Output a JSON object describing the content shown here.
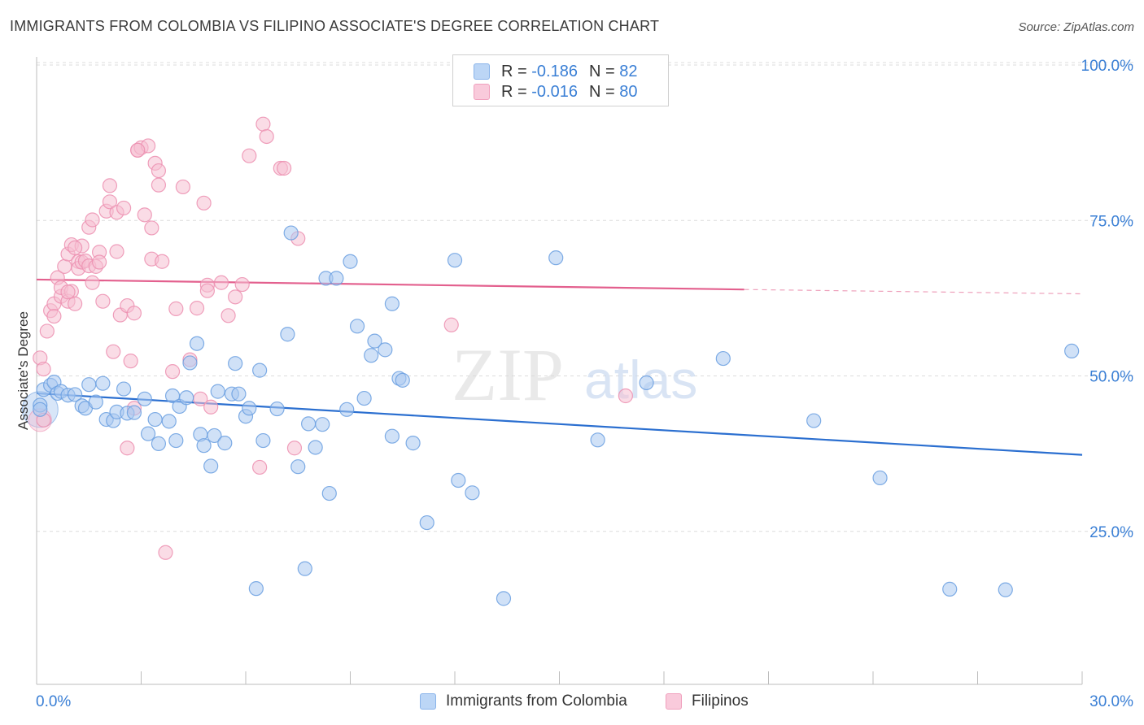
{
  "title": "IMMIGRANTS FROM COLOMBIA VS FILIPINO ASSOCIATE'S DEGREE CORRELATION CHART",
  "source": "Source: ZipAtlas.com",
  "watermark": {
    "zip": "ZIP",
    "atlas": "atlas"
  },
  "legend": {
    "series": [
      {
        "r_label": "R =",
        "r_value": "-0.186",
        "n_label": "N =",
        "n_value": "82"
      },
      {
        "r_label": "R =",
        "r_value": "-0.016",
        "n_label": "N =",
        "n_value": "80"
      }
    ]
  },
  "bottom_legend": [
    "Immigrants from Colombia",
    "Filipinos"
  ],
  "colors": {
    "blue_fill": "#a9c8f0",
    "blue_stroke": "#6a9fe0",
    "blue_line": "#2b6fd0",
    "pink_fill": "#f6bfd2",
    "pink_stroke": "#ec8fb0",
    "pink_line": "#e3608e",
    "tick_label": "#3a7fd5",
    "grid": "#dcdcdc"
  },
  "chart_data": {
    "type": "scatter",
    "title": "IMMIGRANTS FROM COLOMBIA VS FILIPINO ASSOCIATE'S DEGREE CORRELATION CHART",
    "xlabel": "",
    "ylabel": "Associate's Degree",
    "xlim": [
      0,
      30
    ],
    "ylim": [
      0,
      105
    ],
    "x_tick_labels": [
      "0.0%",
      "30.0%"
    ],
    "y_ticks": [
      25,
      50,
      75,
      100
    ],
    "y_tick_labels": [
      "25.0%",
      "50.0%",
      "75.0%",
      "100.0%"
    ],
    "grid": true,
    "legend_position": "top-center",
    "series": [
      {
        "name": "Immigrants from Colombia",
        "color": "#6a9fe0",
        "trend": {
          "x": [
            0,
            30
          ],
          "y": [
            47.2,
            37.3
          ]
        },
        "points": [
          [
            0.1,
            45.3
          ],
          [
            0.2,
            47.8
          ],
          [
            0.4,
            48.5
          ],
          [
            0.5,
            49.0
          ],
          [
            0.6,
            47.2
          ],
          [
            0.7,
            47.5
          ],
          [
            0.9,
            46.9
          ],
          [
            1.1,
            47.0
          ],
          [
            1.3,
            45.2
          ],
          [
            1.4,
            44.8
          ],
          [
            1.5,
            48.6
          ],
          [
            1.7,
            45.8
          ],
          [
            1.9,
            48.8
          ],
          [
            2.0,
            43.0
          ],
          [
            2.2,
            42.8
          ],
          [
            2.3,
            44.2
          ],
          [
            2.5,
            47.9
          ],
          [
            2.6,
            44.0
          ],
          [
            2.8,
            44.1
          ],
          [
            3.1,
            46.3
          ],
          [
            3.2,
            40.7
          ],
          [
            3.4,
            43.0
          ],
          [
            3.5,
            39.1
          ],
          [
            3.8,
            42.7
          ],
          [
            3.9,
            46.8
          ],
          [
            4.0,
            39.6
          ],
          [
            4.1,
            45.1
          ],
          [
            4.3,
            46.5
          ],
          [
            4.4,
            52.1
          ],
          [
            4.6,
            55.2
          ],
          [
            4.7,
            40.6
          ],
          [
            4.8,
            38.8
          ],
          [
            5.0,
            35.5
          ],
          [
            5.1,
            40.4
          ],
          [
            5.2,
            47.5
          ],
          [
            5.4,
            39.2
          ],
          [
            5.6,
            47.1
          ],
          [
            5.7,
            52.0
          ],
          [
            5.8,
            47.1
          ],
          [
            6.0,
            43.5
          ],
          [
            6.1,
            44.8
          ],
          [
            6.3,
            15.8
          ],
          [
            6.4,
            50.9
          ],
          [
            6.5,
            39.6
          ],
          [
            6.9,
            44.7
          ],
          [
            7.2,
            56.7
          ],
          [
            7.3,
            73.0
          ],
          [
            7.5,
            35.4
          ],
          [
            7.7,
            19.0
          ],
          [
            7.8,
            42.3
          ],
          [
            8.0,
            38.5
          ],
          [
            8.2,
            42.2
          ],
          [
            8.3,
            65.7
          ],
          [
            8.4,
            31.1
          ],
          [
            8.6,
            65.7
          ],
          [
            8.9,
            44.6
          ],
          [
            9.0,
            68.4
          ],
          [
            9.2,
            58.0
          ],
          [
            9.4,
            46.4
          ],
          [
            9.6,
            53.3
          ],
          [
            9.7,
            55.6
          ],
          [
            10.0,
            54.2
          ],
          [
            10.2,
            61.6
          ],
          [
            10.4,
            49.6
          ],
          [
            10.5,
            49.3
          ],
          [
            10.2,
            40.3
          ],
          [
            10.8,
            39.2
          ],
          [
            11.2,
            26.4
          ],
          [
            12.0,
            68.6
          ],
          [
            12.1,
            33.2
          ],
          [
            12.5,
            31.2
          ],
          [
            13.4,
            14.2
          ],
          [
            14.9,
            69.0
          ],
          [
            16.1,
            39.7
          ],
          [
            17.5,
            48.9
          ],
          [
            19.7,
            52.8
          ],
          [
            22.3,
            42.8
          ],
          [
            24.2,
            33.6
          ],
          [
            26.2,
            15.7
          ],
          [
            27.8,
            15.6
          ],
          [
            29.7,
            54.0
          ],
          [
            0.1,
            44.6
          ]
        ]
      },
      {
        "name": "Filipinos",
        "color": "#ec8fb0",
        "trend": {
          "x": [
            0,
            20.3,
            30
          ],
          "y": [
            65.5,
            63.9,
            63.2
          ],
          "dashed_from": 20.3
        },
        "points": [
          [
            0.1,
            52.9
          ],
          [
            0.2,
            51.1
          ],
          [
            0.2,
            42.9
          ],
          [
            0.3,
            57.2
          ],
          [
            0.4,
            60.5
          ],
          [
            0.5,
            61.6
          ],
          [
            0.5,
            59.6
          ],
          [
            0.6,
            65.8
          ],
          [
            0.7,
            62.8
          ],
          [
            0.7,
            64.2
          ],
          [
            0.8,
            67.6
          ],
          [
            0.9,
            62.0
          ],
          [
            0.9,
            69.6
          ],
          [
            1.0,
            63.6
          ],
          [
            1.0,
            71.1
          ],
          [
            1.1,
            61.6
          ],
          [
            1.2,
            68.4
          ],
          [
            1.2,
            67.3
          ],
          [
            1.3,
            70.9
          ],
          [
            1.3,
            68.3
          ],
          [
            1.4,
            68.5
          ],
          [
            1.5,
            67.7
          ],
          [
            1.5,
            73.9
          ],
          [
            1.6,
            75.1
          ],
          [
            1.6,
            65.0
          ],
          [
            1.7,
            67.6
          ],
          [
            1.8,
            69.9
          ],
          [
            1.8,
            68.3
          ],
          [
            1.9,
            62.0
          ],
          [
            2.0,
            76.5
          ],
          [
            2.1,
            78.0
          ],
          [
            2.1,
            80.6
          ],
          [
            2.2,
            53.9
          ],
          [
            2.3,
            70.0
          ],
          [
            2.3,
            76.3
          ],
          [
            2.4,
            59.8
          ],
          [
            2.5,
            77.0
          ],
          [
            2.6,
            38.4
          ],
          [
            2.6,
            61.3
          ],
          [
            2.7,
            52.4
          ],
          [
            2.8,
            60.1
          ],
          [
            2.8,
            44.8
          ],
          [
            2.9,
            86.3
          ],
          [
            3.0,
            86.7
          ],
          [
            3.1,
            75.9
          ],
          [
            3.2,
            87.0
          ],
          [
            3.3,
            68.8
          ],
          [
            3.3,
            73.8
          ],
          [
            3.4,
            84.2
          ],
          [
            3.5,
            83.0
          ],
          [
            3.5,
            80.7
          ],
          [
            3.6,
            68.4
          ],
          [
            3.7,
            21.6
          ],
          [
            3.9,
            50.7
          ],
          [
            4.0,
            60.8
          ],
          [
            4.2,
            80.4
          ],
          [
            4.4,
            52.6
          ],
          [
            4.6,
            60.9
          ],
          [
            4.7,
            46.3
          ],
          [
            4.8,
            77.8
          ],
          [
            4.9,
            64.6
          ],
          [
            4.9,
            63.7
          ],
          [
            5.0,
            45.0
          ],
          [
            5.3,
            65.0
          ],
          [
            5.5,
            59.7
          ],
          [
            5.7,
            62.7
          ],
          [
            5.9,
            64.7
          ],
          [
            6.1,
            85.4
          ],
          [
            6.4,
            35.3
          ],
          [
            6.5,
            90.5
          ],
          [
            6.6,
            88.5
          ],
          [
            7.0,
            83.4
          ],
          [
            7.1,
            83.4
          ],
          [
            7.4,
            38.4
          ],
          [
            7.5,
            72.1
          ],
          [
            11.9,
            58.2
          ],
          [
            16.9,
            46.8
          ],
          [
            1.1,
            70.6
          ],
          [
            0.9,
            63.5
          ],
          [
            2.9,
            86.3
          ]
        ]
      }
    ]
  }
}
